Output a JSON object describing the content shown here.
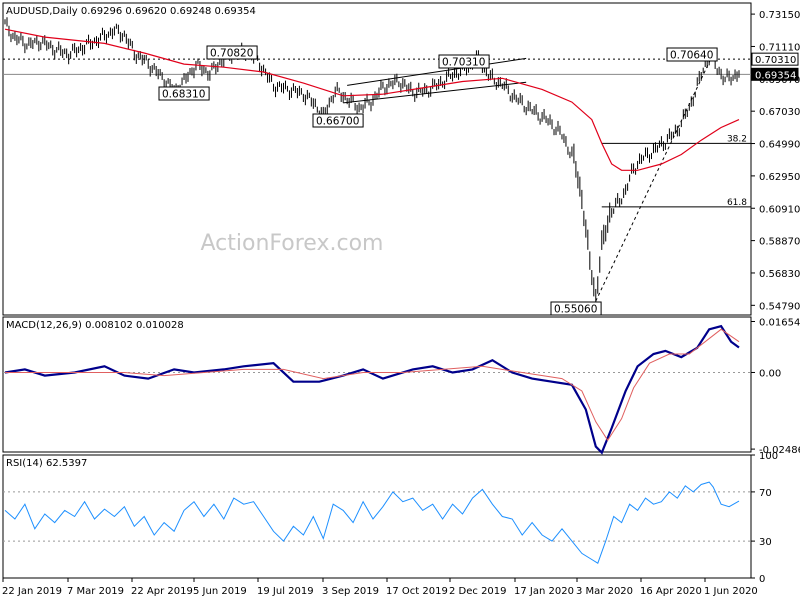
{
  "chart_data": [
    {
      "type": "line",
      "panel": "price",
      "title": "AUDUSD,Daily  0.69296 0.69620 0.69248 0.69354",
      "watermark": "ActionForex.com",
      "ylim": [
        0.5418,
        0.7385
      ],
      "y_ticks": [
        "0.73150",
        "0.71110",
        "0.69070",
        "0.67030",
        "0.64990",
        "0.62950",
        "0.60910",
        "0.58870",
        "0.56830",
        "0.54790"
      ],
      "x_ticks": [
        "22 Jan 2019",
        "7 Mar 2019",
        "22 Apr 2019",
        "5 Jun 2019",
        "19 Jul 2019",
        "3 Sep 2019",
        "17 Oct 2019",
        "2 Dec 2019",
        "17 Jan 2020",
        "3 Mar 2020",
        "16 Apr 2020",
        "1 Jun 2020"
      ],
      "x_range": [
        0,
        370
      ],
      "series": [
        {
          "name": "",
          "color": "#000000",
          "kind": "ohlc",
          "points": [
            [
              0,
              0.725
            ],
            [
              5,
              0.716
            ],
            [
              12,
              0.712
            ],
            [
              18,
              0.714
            ],
            [
              25,
              0.709
            ],
            [
              32,
              0.706
            ],
            [
              40,
              0.711
            ],
            [
              48,
              0.716
            ],
            [
              55,
              0.721
            ],
            [
              60,
              0.718
            ],
            [
              65,
              0.707
            ],
            [
              72,
              0.7
            ],
            [
              80,
              0.69
            ],
            [
              85,
              0.683
            ],
            [
              90,
              0.689
            ],
            [
              96,
              0.699
            ],
            [
              103,
              0.694
            ],
            [
              110,
              0.703
            ],
            [
              116,
              0.707
            ],
            [
              122,
              0.708
            ],
            [
              128,
              0.7
            ],
            [
              135,
              0.686
            ],
            [
              142,
              0.684
            ],
            [
              150,
              0.681
            ],
            [
              156,
              0.674
            ],
            [
              160,
              0.667
            ],
            [
              166,
              0.683
            ],
            [
              172,
              0.678
            ],
            [
              178,
              0.672
            ],
            [
              184,
              0.676
            ],
            [
              190,
              0.685
            ],
            [
              198,
              0.689
            ],
            [
              205,
              0.682
            ],
            [
              212,
              0.683
            ],
            [
              218,
              0.687
            ],
            [
              225,
              0.693
            ],
            [
              232,
              0.697
            ],
            [
              238,
              0.703
            ],
            [
              244,
              0.691
            ],
            [
              250,
              0.687
            ],
            [
              255,
              0.68
            ],
            [
              262,
              0.673
            ],
            [
              268,
              0.668
            ],
            [
              274,
              0.663
            ],
            [
              280,
              0.655
            ],
            [
              286,
              0.64
            ],
            [
              290,
              0.615
            ],
            [
              294,
              0.575
            ],
            [
              297,
              0.551
            ],
            [
              300,
              0.585
            ],
            [
              304,
              0.605
            ],
            [
              308,
              0.612
            ],
            [
              312,
              0.62
            ],
            [
              316,
              0.634
            ],
            [
              320,
              0.64
            ],
            [
              326,
              0.645
            ],
            [
              332,
              0.651
            ],
            [
              338,
              0.658
            ],
            [
              344,
              0.672
            ],
            [
              348,
              0.686
            ],
            [
              352,
              0.7
            ],
            [
              355,
              0.706
            ],
            [
              358,
              0.697
            ],
            [
              362,
              0.69
            ],
            [
              366,
              0.692
            ],
            [
              369,
              0.6935
            ]
          ]
        },
        {
          "name": "",
          "color": "#e0001a",
          "kind": "ma",
          "points": [
            [
              0,
              0.722
            ],
            [
              20,
              0.717
            ],
            [
              50,
              0.713
            ],
            [
              70,
              0.707
            ],
            [
              90,
              0.7
            ],
            [
              110,
              0.698
            ],
            [
              130,
              0.695
            ],
            [
              150,
              0.688
            ],
            [
              170,
              0.68
            ],
            [
              190,
              0.681
            ],
            [
              210,
              0.685
            ],
            [
              230,
              0.689
            ],
            [
              250,
              0.691
            ],
            [
              270,
              0.684
            ],
            [
              285,
              0.676
            ],
            [
              295,
              0.665
            ],
            [
              300,
              0.65
            ],
            [
              305,
              0.637
            ],
            [
              310,
              0.633
            ],
            [
              318,
              0.633
            ],
            [
              330,
              0.637
            ],
            [
              340,
              0.643
            ],
            [
              350,
              0.652
            ],
            [
              360,
              0.66
            ],
            [
              369,
              0.665
            ]
          ]
        }
      ],
      "annotations": [
        "0.70820",
        "0.68310",
        "0.66700",
        "0.70310",
        "0.70640",
        "0.55060",
        "38.2",
        "61.8"
      ],
      "levels": {
        "l_70820": 0.7082,
        "l_68310": 0.6831,
        "l_66700": 0.667,
        "l_70310": 0.7031,
        "l_70640": 0.7064,
        "l_55060": 0.5506,
        "fib_382": 0.65,
        "fib_618": 0.61,
        "resistance": 0.7031,
        "last": 0.69354
      },
      "price_labels": [
        "0.70310",
        "0.69354"
      ],
      "grid": false
    },
    {
      "type": "line",
      "panel": "macd",
      "title": "MACD(12,26,9) 0.008102 0.010028",
      "ylim": [
        -0.0258,
        0.018
      ],
      "y_ticks": [
        "0.01654",
        "0.00",
        "-0.02486"
      ],
      "series": [
        {
          "name": "",
          "color": "#00008b",
          "points": [
            [
              0,
              0.0
            ],
            [
              10,
              0.001
            ],
            [
              20,
              -0.001
            ],
            [
              35,
              0.0
            ],
            [
              50,
              0.002
            ],
            [
              60,
              -0.001
            ],
            [
              72,
              -0.002
            ],
            [
              85,
              0.001
            ],
            [
              95,
              0.0
            ],
            [
              110,
              0.001
            ],
            [
              120,
              0.002
            ],
            [
              135,
              0.003
            ],
            [
              145,
              -0.003
            ],
            [
              158,
              -0.003
            ],
            [
              170,
              -0.001
            ],
            [
              180,
              0.001
            ],
            [
              190,
              -0.002
            ],
            [
              205,
              0.001
            ],
            [
              215,
              0.002
            ],
            [
              225,
              0.0
            ],
            [
              235,
              0.001
            ],
            [
              245,
              0.004
            ],
            [
              255,
              0.0
            ],
            [
              265,
              -0.002
            ],
            [
              275,
              -0.003
            ],
            [
              285,
              -0.004
            ],
            [
              292,
              -0.012
            ],
            [
              297,
              -0.024
            ],
            [
              300,
              -0.026
            ],
            [
              305,
              -0.018
            ],
            [
              312,
              -0.006
            ],
            [
              318,
              0.002
            ],
            [
              326,
              0.006
            ],
            [
              332,
              0.007
            ],
            [
              340,
              0.005
            ],
            [
              348,
              0.008
            ],
            [
              354,
              0.014
            ],
            [
              360,
              0.015
            ],
            [
              365,
              0.01
            ],
            [
              369,
              0.0081
            ]
          ]
        },
        {
          "name": "",
          "color": "#e06060",
          "points": [
            [
              0,
              0.0
            ],
            [
              20,
              0.0
            ],
            [
              40,
              0.0
            ],
            [
              60,
              0.0
            ],
            [
              80,
              -0.001
            ],
            [
              100,
              0.0
            ],
            [
              120,
              0.001
            ],
            [
              140,
              0.001
            ],
            [
              160,
              -0.002
            ],
            [
              180,
              0.0
            ],
            [
              200,
              0.0
            ],
            [
              220,
              0.001
            ],
            [
              240,
              0.002
            ],
            [
              260,
              0.0
            ],
            [
              280,
              -0.002
            ],
            [
              290,
              -0.006
            ],
            [
              297,
              -0.016
            ],
            [
              303,
              -0.022
            ],
            [
              310,
              -0.015
            ],
            [
              316,
              -0.005
            ],
            [
              324,
              0.003
            ],
            [
              334,
              0.006
            ],
            [
              344,
              0.006
            ],
            [
              352,
              0.01
            ],
            [
              360,
              0.014
            ],
            [
              369,
              0.01
            ]
          ]
        }
      ],
      "grid": false
    },
    {
      "type": "line",
      "panel": "rsi",
      "title": "RSI(14) 62.5397",
      "ylim": [
        0,
        100
      ],
      "y_ticks": [
        "100",
        "70",
        "30",
        "0"
      ],
      "levels": {
        "rsi_upper": 70,
        "rsi_lower": 30
      },
      "series": [
        {
          "name": "",
          "color": "#1e90ff",
          "points": [
            [
              0,
              55
            ],
            [
              5,
              48
            ],
            [
              10,
              60
            ],
            [
              15,
              40
            ],
            [
              20,
              52
            ],
            [
              25,
              45
            ],
            [
              30,
              55
            ],
            [
              35,
              50
            ],
            [
              40,
              62
            ],
            [
              45,
              48
            ],
            [
              50,
              56
            ],
            [
              55,
              50
            ],
            [
              60,
              58
            ],
            [
              65,
              42
            ],
            [
              70,
              50
            ],
            [
              75,
              35
            ],
            [
              80,
              45
            ],
            [
              85,
              38
            ],
            [
              90,
              55
            ],
            [
              95,
              62
            ],
            [
              100,
              50
            ],
            [
              105,
              60
            ],
            [
              110,
              48
            ],
            [
              115,
              65
            ],
            [
              120,
              60
            ],
            [
              125,
              62
            ],
            [
              130,
              50
            ],
            [
              135,
              38
            ],
            [
              140,
              30
            ],
            [
              145,
              42
            ],
            [
              150,
              35
            ],
            [
              155,
              50
            ],
            [
              160,
              32
            ],
            [
              165,
              60
            ],
            [
              170,
              55
            ],
            [
              175,
              45
            ],
            [
              180,
              62
            ],
            [
              185,
              48
            ],
            [
              190,
              58
            ],
            [
              195,
              70
            ],
            [
              200,
              62
            ],
            [
              205,
              65
            ],
            [
              210,
              55
            ],
            [
              215,
              60
            ],
            [
              220,
              48
            ],
            [
              225,
              60
            ],
            [
              230,
              52
            ],
            [
              235,
              65
            ],
            [
              240,
              72
            ],
            [
              245,
              60
            ],
            [
              250,
              50
            ],
            [
              255,
              48
            ],
            [
              260,
              35
            ],
            [
              265,
              45
            ],
            [
              270,
              35
            ],
            [
              275,
              30
            ],
            [
              280,
              40
            ],
            [
              285,
              30
            ],
            [
              290,
              20
            ],
            [
              295,
              15
            ],
            [
              298,
              12
            ],
            [
              302,
              30
            ],
            [
              306,
              50
            ],
            [
              310,
              45
            ],
            [
              314,
              60
            ],
            [
              318,
              55
            ],
            [
              322,
              65
            ],
            [
              326,
              60
            ],
            [
              330,
              62
            ],
            [
              334,
              70
            ],
            [
              338,
              65
            ],
            [
              342,
              75
            ],
            [
              346,
              70
            ],
            [
              350,
              76
            ],
            [
              354,
              78
            ],
            [
              356,
              74
            ],
            [
              360,
              60
            ],
            [
              364,
              58
            ],
            [
              369,
              62.5
            ]
          ]
        }
      ],
      "grid": false
    }
  ]
}
